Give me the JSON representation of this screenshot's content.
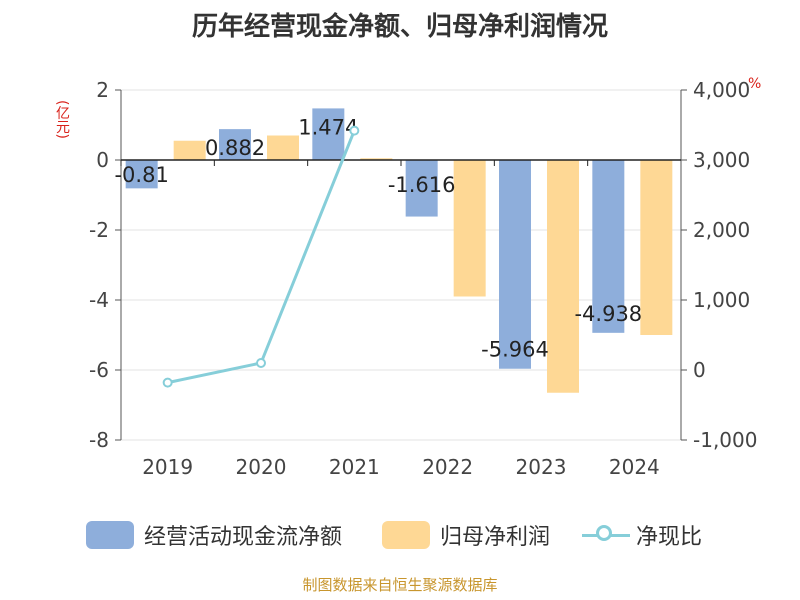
{
  "title": "历年经营现金净额、归母净利润情况",
  "left_unit": "(亿元)",
  "right_unit": "%",
  "footer": "制图数据来自恒生聚源数据库",
  "legend": [
    {
      "label": "经营活动现金流净额",
      "color": "#8eaedb"
    },
    {
      "label": "归母净利润",
      "color": "#fed895"
    },
    {
      "label": "净现比",
      "color": "#86ced9"
    }
  ],
  "chart_data": {
    "type": "bar",
    "categories": [
      "2019",
      "2020",
      "2021",
      "2022",
      "2023",
      "2024"
    ],
    "series": [
      {
        "name": "经营活动现金流净额",
        "axis": "left",
        "values": [
          -0.81,
          0.882,
          1.474,
          -1.616,
          -5.964,
          -4.938
        ],
        "labels": [
          "-0.81",
          "0.882",
          "1.474",
          "-1.616",
          "-5.964",
          "-4.938"
        ]
      },
      {
        "name": "归母净利润",
        "axis": "left",
        "values": [
          0.55,
          0.7,
          0.05,
          -3.9,
          -6.65,
          -5.0
        ]
      },
      {
        "name": "净现比",
        "axis": "right",
        "type": "line",
        "values": [
          -180,
          100,
          3420,
          null,
          null,
          null
        ]
      }
    ],
    "left_axis": {
      "min": -8,
      "max": 2,
      "ticks": [
        "2",
        "0",
        "-2",
        "-4",
        "-6",
        "-8"
      ]
    },
    "right_axis": {
      "min": -1000,
      "max": 4000,
      "ticks": [
        "4,000",
        "3,000",
        "2,000",
        "1,000",
        "0",
        "-1,000"
      ]
    }
  }
}
